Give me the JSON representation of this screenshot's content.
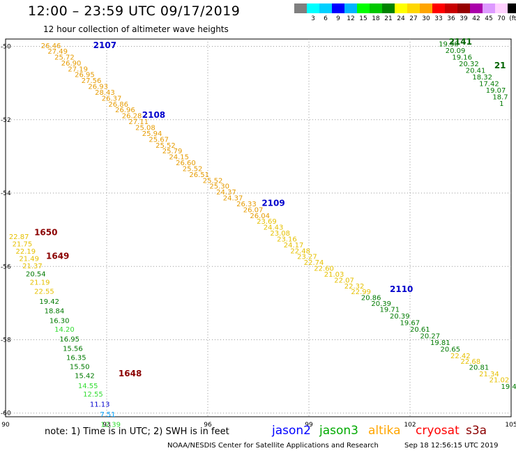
{
  "header": {
    "title": "12:00 – 23:59 UTC 09/17/2019",
    "subtitle": "12 hour collection of altimeter wave heights"
  },
  "colorbar": {
    "colors": [
      "#7f7f7f",
      "#00ffff",
      "#00d0ff",
      "#0000ff",
      "#00b4ff",
      "#00ff00",
      "#00c800",
      "#008200",
      "#ffff00",
      "#ffd700",
      "#ffa500",
      "#ff0000",
      "#c80000",
      "#960000",
      "#aa00aa",
      "#dd99ff",
      "#ffd0ff",
      "#000000"
    ],
    "labels": [
      "",
      "3",
      "6",
      "9",
      "12",
      "15",
      "18",
      "21",
      "24",
      "27",
      "30",
      "33",
      "36",
      "39",
      "42",
      "45",
      "70",
      "(ft)"
    ]
  },
  "map": {
    "lon_min": 90,
    "lon_max": 105,
    "lat_min": -60.1,
    "lat_max": -49.8,
    "lon_ticks": [
      "90",
      "93",
      "96",
      "99",
      "102",
      "105"
    ],
    "lat_ticks": [
      "-50",
      "-52",
      "-54",
      "-56",
      "-58",
      "-60"
    ]
  },
  "passes": [
    {
      "label": "2107",
      "lon": 92.6,
      "lat": -50.05,
      "color": "#0000cc"
    },
    {
      "label": "2108",
      "lon": 94.05,
      "lat": -51.95,
      "color": "#0000cc"
    },
    {
      "label": "2109",
      "lon": 97.6,
      "lat": -54.35,
      "color": "#0000cc"
    },
    {
      "label": "2110",
      "lon": 101.4,
      "lat": -56.7,
      "color": "#0000cc"
    },
    {
      "label": "2141",
      "lon": 103.15,
      "lat": -49.95,
      "color": "#006400"
    },
    {
      "label": "21",
      "lon": 104.5,
      "lat": -50.6,
      "color": "#006400"
    },
    {
      "label": "1650",
      "lon": 90.85,
      "lat": -55.15,
      "color": "#8b0000"
    },
    {
      "label": "1649",
      "lon": 91.2,
      "lat": -55.8,
      "color": "#8b0000"
    },
    {
      "label": "1648",
      "lon": 93.35,
      "lat": -59.0,
      "color": "#8b0000"
    }
  ],
  "tracks": [
    {
      "name": "altika-track",
      "points": [
        {
          "lon": 91.05,
          "lat": -50.05,
          "v": "26.46",
          "c": "#e69b00"
        },
        {
          "lon": 91.25,
          "lat": -50.2,
          "v": "27.49",
          "c": "#e69b00"
        },
        {
          "lon": 91.45,
          "lat": -50.36,
          "v": "25.72",
          "c": "#e69b00"
        },
        {
          "lon": 91.65,
          "lat": -50.52,
          "v": "26.90",
          "c": "#e69b00"
        },
        {
          "lon": 91.85,
          "lat": -50.68,
          "v": "27.19",
          "c": "#e69b00"
        },
        {
          "lon": 92.05,
          "lat": -50.84,
          "v": "26.95",
          "c": "#e69b00"
        },
        {
          "lon": 92.25,
          "lat": -51.0,
          "v": "27.56",
          "c": "#e69b00"
        },
        {
          "lon": 92.45,
          "lat": -51.16,
          "v": "26.93",
          "c": "#e69b00"
        },
        {
          "lon": 92.65,
          "lat": -51.32,
          "v": "28.43",
          "c": "#e69b00"
        },
        {
          "lon": 92.85,
          "lat": -51.48,
          "v": "26.37",
          "c": "#e69b00"
        },
        {
          "lon": 93.05,
          "lat": -51.64,
          "v": "26.86",
          "c": "#e69b00"
        },
        {
          "lon": 93.25,
          "lat": -51.8,
          "v": "26.96",
          "c": "#e69b00"
        },
        {
          "lon": 93.45,
          "lat": -51.96,
          "v": "26.28",
          "c": "#e69b00"
        },
        {
          "lon": 93.65,
          "lat": -52.12,
          "v": "27.11",
          "c": "#e69b00"
        },
        {
          "lon": 93.85,
          "lat": -52.28,
          "v": "25.08",
          "c": "#e69b00"
        },
        {
          "lon": 94.05,
          "lat": -52.44,
          "v": "25.94",
          "c": "#e69b00"
        },
        {
          "lon": 94.25,
          "lat": -52.6,
          "v": "25.67",
          "c": "#e69b00"
        },
        {
          "lon": 94.45,
          "lat": -52.76,
          "v": "25.52",
          "c": "#e69b00"
        },
        {
          "lon": 94.65,
          "lat": -52.92,
          "v": "25.79",
          "c": "#e69b00"
        },
        {
          "lon": 94.85,
          "lat": -53.08,
          "v": "24.15",
          "c": "#e69b00"
        },
        {
          "lon": 95.05,
          "lat": -53.24,
          "v": "26.60",
          "c": "#e69b00"
        },
        {
          "lon": 95.25,
          "lat": -53.4,
          "v": "25.52",
          "c": "#e69b00"
        },
        {
          "lon": 95.45,
          "lat": -53.56,
          "v": "26.51",
          "c": "#e69b00"
        },
        {
          "lon": 95.85,
          "lat": -53.72,
          "v": "25.52",
          "c": "#e69b00"
        },
        {
          "lon": 96.05,
          "lat": -53.88,
          "v": "25.30",
          "c": "#e69b00"
        },
        {
          "lon": 96.25,
          "lat": -54.04,
          "v": "24.37",
          "c": "#e69b00"
        },
        {
          "lon": 96.45,
          "lat": -54.2,
          "v": "24.37",
          "c": "#e69b00"
        },
        {
          "lon": 96.85,
          "lat": -54.36,
          "v": "26.33",
          "c": "#e69b00"
        },
        {
          "lon": 97.05,
          "lat": -54.52,
          "v": "26.07",
          "c": "#e69b00"
        },
        {
          "lon": 97.25,
          "lat": -54.68,
          "v": "26.04",
          "c": "#e69b00"
        },
        {
          "lon": 97.45,
          "lat": -54.84,
          "v": "23.69",
          "c": "#e6c000"
        },
        {
          "lon": 97.65,
          "lat": -55.0,
          "v": "24.43",
          "c": "#e6c000"
        },
        {
          "lon": 97.85,
          "lat": -55.16,
          "v": "23.08",
          "c": "#e6c000"
        },
        {
          "lon": 98.05,
          "lat": -55.32,
          "v": "23.16",
          "c": "#e6c000"
        },
        {
          "lon": 98.25,
          "lat": -55.48,
          "v": "24.17",
          "c": "#e6c000"
        },
        {
          "lon": 98.45,
          "lat": -55.64,
          "v": "22.48",
          "c": "#e6c000"
        },
        {
          "lon": 98.65,
          "lat": -55.8,
          "v": "23.27",
          "c": "#e6c000"
        },
        {
          "lon": 98.85,
          "lat": -55.96,
          "v": "22.74",
          "c": "#e6c000"
        },
        {
          "lon": 99.15,
          "lat": -56.12,
          "v": "22.60",
          "c": "#e6c000"
        },
        {
          "lon": 99.45,
          "lat": -56.28,
          "v": "21.03",
          "c": "#e6c000"
        },
        {
          "lon": 99.75,
          "lat": -56.44,
          "v": "22.07",
          "c": "#e6c000"
        },
        {
          "lon": 100.05,
          "lat": -56.6,
          "v": "22.32",
          "c": "#e6c000"
        },
        {
          "lon": 100.25,
          "lat": -56.76,
          "v": "22.99",
          "c": "#e6c000"
        }
      ]
    },
    {
      "name": "jason3-track-main",
      "points": [
        {
          "lon": 100.55,
          "lat": -56.92,
          "v": "20.86",
          "c": "#007a00"
        },
        {
          "lon": 100.85,
          "lat": -57.08,
          "v": "20.39",
          "c": "#007a00"
        },
        {
          "lon": 101.1,
          "lat": -57.24,
          "v": "19.71",
          "c": "#007a00"
        },
        {
          "lon": 101.4,
          "lat": -57.42,
          "v": "20.39",
          "c": "#007a00"
        },
        {
          "lon": 101.7,
          "lat": -57.6,
          "v": "19.67",
          "c": "#007a00"
        },
        {
          "lon": 102.0,
          "lat": -57.78,
          "v": "20.61",
          "c": "#007a00"
        },
        {
          "lon": 102.3,
          "lat": -57.96,
          "v": "20.27",
          "c": "#007a00"
        },
        {
          "lon": 102.6,
          "lat": -58.14,
          "v": "19.81",
          "c": "#007a00"
        },
        {
          "lon": 102.9,
          "lat": -58.32,
          "v": "20.65",
          "c": "#007a00"
        },
        {
          "lon": 103.2,
          "lat": -58.5,
          "v": "22.42",
          "c": "#e6c000"
        },
        {
          "lon": 103.5,
          "lat": -58.66,
          "v": "22.68",
          "c": "#e6c000"
        },
        {
          "lon": 103.75,
          "lat": -58.82,
          "v": "20.81",
          "c": "#007a00"
        },
        {
          "lon": 104.05,
          "lat": -59.0,
          "v": "21.34",
          "c": "#e6c000"
        },
        {
          "lon": 104.35,
          "lat": -59.16,
          "v": "21.02",
          "c": "#e6c000"
        },
        {
          "lon": 104.7,
          "lat": -59.34,
          "v": "19.4",
          "c": "#007a00"
        }
      ]
    },
    {
      "name": "jason3-track-northeast",
      "points": [
        {
          "lon": 102.85,
          "lat": -50.0,
          "v": "19.30",
          "c": "#007a00"
        },
        {
          "lon": 103.05,
          "lat": -50.18,
          "v": "20.09",
          "c": "#007a00"
        },
        {
          "lon": 103.25,
          "lat": -50.36,
          "v": "19.16",
          "c": "#007a00"
        },
        {
          "lon": 103.45,
          "lat": -50.54,
          "v": "20.32",
          "c": "#007a00"
        },
        {
          "lon": 103.65,
          "lat": -50.72,
          "v": "20.41",
          "c": "#007a00"
        },
        {
          "lon": 103.85,
          "lat": -50.9,
          "v": "18.32",
          "c": "#007a00"
        },
        {
          "lon": 104.05,
          "lat": -51.08,
          "v": "17.42",
          "c": "#007a00"
        },
        {
          "lon": 104.25,
          "lat": -51.26,
          "v": "19.07",
          "c": "#007a00"
        },
        {
          "lon": 104.45,
          "lat": -51.44,
          "v": "18.7",
          "c": "#007a00"
        },
        {
          "lon": 104.65,
          "lat": -51.62,
          "v": "1",
          "c": "#007a00"
        }
      ]
    },
    {
      "name": "west-track",
      "points": [
        {
          "lon": 90.1,
          "lat": -55.25,
          "v": "22.87",
          "c": "#e6c000"
        },
        {
          "lon": 90.2,
          "lat": -55.45,
          "v": "21.75",
          "c": "#e6c000"
        },
        {
          "lon": 90.3,
          "lat": -55.65,
          "v": "22.19",
          "c": "#e6c000"
        },
        {
          "lon": 90.4,
          "lat": -55.85,
          "v": "21.49",
          "c": "#e6c000"
        },
        {
          "lon": 90.5,
          "lat": -56.05,
          "v": "21.37",
          "c": "#e6c000"
        },
        {
          "lon": 90.6,
          "lat": -56.27,
          "v": "20.54",
          "c": "#007a00"
        },
        {
          "lon": 90.72,
          "lat": -56.5,
          "v": "21.19",
          "c": "#e6c000"
        },
        {
          "lon": 90.85,
          "lat": -56.75,
          "v": "22.55",
          "c": "#e6c000"
        },
        {
          "lon": 91.0,
          "lat": -57.02,
          "v": "19.42",
          "c": "#007a00"
        },
        {
          "lon": 91.15,
          "lat": -57.28,
          "v": "18.84",
          "c": "#007a00"
        },
        {
          "lon": 91.3,
          "lat": -57.54,
          "v": "16.30",
          "c": "#007a00"
        },
        {
          "lon": 91.45,
          "lat": -57.78,
          "v": "14.20",
          "c": "#33dd33"
        },
        {
          "lon": 91.6,
          "lat": -58.05,
          "v": "16.95",
          "c": "#007a00"
        },
        {
          "lon": 91.7,
          "lat": -58.3,
          "v": "15.56",
          "c": "#007a00"
        },
        {
          "lon": 91.8,
          "lat": -58.55,
          "v": "16.35",
          "c": "#007a00"
        },
        {
          "lon": 91.9,
          "lat": -58.8,
          "v": "15.50",
          "c": "#007a00"
        },
        {
          "lon": 92.05,
          "lat": -59.05,
          "v": "15.42",
          "c": "#007a00"
        },
        {
          "lon": 92.15,
          "lat": -59.32,
          "v": "14.55",
          "c": "#33dd33"
        },
        {
          "lon": 92.3,
          "lat": -59.55,
          "v": "12.55",
          "c": "#33dd33"
        },
        {
          "lon": 92.5,
          "lat": -59.82,
          "v": "11.13",
          "c": "#0000cc"
        },
        {
          "lon": 92.8,
          "lat": -60.1,
          "v": "7.51",
          "c": "#00a0ff"
        },
        {
          "lon": 92.82,
          "lat": -60.38,
          "v": "12.39",
          "c": "#33dd33"
        }
      ]
    }
  ],
  "footer": {
    "note": "note:  1) Time is in UTC;  2) SWH is in feet",
    "satellites": [
      {
        "name": "jason2",
        "color": "#0000ff"
      },
      {
        "name": "jason3",
        "color": "#00aa00"
      },
      {
        "name": "altika",
        "color": "#ffa500"
      },
      {
        "name": "cryosat",
        "color": "#ff0000"
      },
      {
        "name": "s3a",
        "color": "#8b0000"
      }
    ],
    "credit": "NOAA/NESDIS Center for Satellite Applications and Research",
    "timestamp": "Sep 18 12:56:15 UTC 2019"
  }
}
